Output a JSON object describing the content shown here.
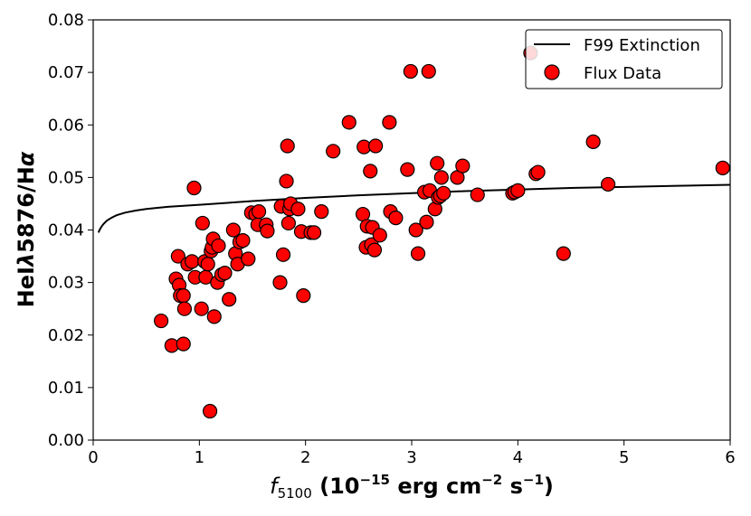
{
  "chart_data": {
    "type": "scatter",
    "title": "",
    "xlabel": {
      "prefix": "f",
      "subscript": "5100",
      "text1": " (10",
      "sup1": "−15",
      "text2": " erg cm",
      "sup2": "−2",
      "text3": " s",
      "sup3": "−1",
      "text4": ")"
    },
    "ylabel": {
      "a": "HeI",
      "lambda": "λ",
      "b": "5876/H",
      "alpha": "α"
    },
    "xlim": [
      0,
      6
    ],
    "ylim": [
      0,
      0.08
    ],
    "xticks": [
      0,
      1,
      2,
      3,
      4,
      5,
      6
    ],
    "xtick_labels": [
      "0",
      "1",
      "2",
      "3",
      "4",
      "5",
      "6"
    ],
    "yticks": [
      0.0,
      0.01,
      0.02,
      0.03,
      0.04,
      0.05,
      0.06,
      0.07,
      0.08
    ],
    "ytick_labels": [
      "0.00",
      "0.01",
      "0.02",
      "0.03",
      "0.04",
      "0.05",
      "0.06",
      "0.07",
      "0.08"
    ],
    "grid": false,
    "legend_position": "top-right",
    "legend": [
      {
        "label": "F99 Extinction",
        "marker": "line",
        "color": "#000000"
      },
      {
        "label": "Flux Data",
        "marker": "circle",
        "color": "#ff0000"
      }
    ],
    "series": [
      {
        "name": "F99 Extinction",
        "type": "line",
        "color": "#000000",
        "x": [
          0.05,
          0.06,
          0.08,
          0.1,
          0.13,
          0.17,
          0.22,
          0.3,
          0.4,
          0.5,
          0.7,
          1.0,
          1.5,
          2.0,
          2.5,
          3.0,
          3.5,
          4.0,
          4.5,
          5.0,
          5.5,
          6.0
        ],
        "y": [
          0.0395,
          0.04,
          0.0407,
          0.0412,
          0.0418,
          0.0423,
          0.0428,
          0.0433,
          0.0437,
          0.044,
          0.0444,
          0.0448,
          0.0455,
          0.0461,
          0.0466,
          0.047,
          0.0474,
          0.0477,
          0.048,
          0.0482,
          0.0484,
          0.0486
        ]
      },
      {
        "name": "Flux Data",
        "type": "scatter",
        "color": "#ff0000",
        "edgecolor": "#000000",
        "points": [
          [
            0.64,
            0.0227
          ],
          [
            0.74,
            0.018
          ],
          [
            0.78,
            0.0307
          ],
          [
            0.8,
            0.035
          ],
          [
            0.81,
            0.0295
          ],
          [
            0.82,
            0.0275
          ],
          [
            0.85,
            0.0275
          ],
          [
            0.85,
            0.0183
          ],
          [
            0.86,
            0.025
          ],
          [
            0.89,
            0.0335
          ],
          [
            0.93,
            0.034
          ],
          [
            0.95,
            0.048
          ],
          [
            0.96,
            0.031
          ],
          [
            1.02,
            0.025
          ],
          [
            1.03,
            0.0413
          ],
          [
            1.05,
            0.034
          ],
          [
            1.06,
            0.031
          ],
          [
            1.08,
            0.0335
          ],
          [
            1.1,
            0.0055
          ],
          [
            1.11,
            0.036
          ],
          [
            1.12,
            0.0367
          ],
          [
            1.13,
            0.0383
          ],
          [
            1.14,
            0.0235
          ],
          [
            1.17,
            0.03
          ],
          [
            1.18,
            0.037
          ],
          [
            1.21,
            0.0315
          ],
          [
            1.24,
            0.0318
          ],
          [
            1.28,
            0.0268
          ],
          [
            1.32,
            0.04
          ],
          [
            1.34,
            0.0355
          ],
          [
            1.36,
            0.0335
          ],
          [
            1.38,
            0.0377
          ],
          [
            1.41,
            0.038
          ],
          [
            1.46,
            0.0345
          ],
          [
            1.49,
            0.0433
          ],
          [
            1.53,
            0.043
          ],
          [
            1.55,
            0.041
          ],
          [
            1.56,
            0.0435
          ],
          [
            1.63,
            0.041
          ],
          [
            1.64,
            0.0398
          ],
          [
            1.76,
            0.03
          ],
          [
            1.77,
            0.0445
          ],
          [
            1.79,
            0.0353
          ],
          [
            1.82,
            0.0493
          ],
          [
            1.83,
            0.056
          ],
          [
            1.84,
            0.0413
          ],
          [
            1.85,
            0.044
          ],
          [
            1.86,
            0.045
          ],
          [
            1.93,
            0.044
          ],
          [
            1.96,
            0.0397
          ],
          [
            1.98,
            0.0275
          ],
          [
            2.05,
            0.0395
          ],
          [
            2.08,
            0.0395
          ],
          [
            2.15,
            0.0435
          ],
          [
            2.26,
            0.055
          ],
          [
            2.41,
            0.0605
          ],
          [
            2.54,
            0.043
          ],
          [
            2.55,
            0.0558
          ],
          [
            2.57,
            0.0367
          ],
          [
            2.58,
            0.0407
          ],
          [
            2.61,
            0.0512
          ],
          [
            2.62,
            0.0372
          ],
          [
            2.63,
            0.0405
          ],
          [
            2.65,
            0.0362
          ],
          [
            2.66,
            0.056
          ],
          [
            2.7,
            0.039
          ],
          [
            2.79,
            0.0605
          ],
          [
            2.8,
            0.0435
          ],
          [
            2.85,
            0.0423
          ],
          [
            2.96,
            0.0515
          ],
          [
            2.99,
            0.0702
          ],
          [
            3.04,
            0.04
          ],
          [
            3.06,
            0.0355
          ],
          [
            3.12,
            0.0472
          ],
          [
            3.14,
            0.0415
          ],
          [
            3.16,
            0.0702
          ],
          [
            3.17,
            0.0475
          ],
          [
            3.22,
            0.044
          ],
          [
            3.24,
            0.0527
          ],
          [
            3.25,
            0.0462
          ],
          [
            3.27,
            0.0465
          ],
          [
            3.28,
            0.05
          ],
          [
            3.3,
            0.047
          ],
          [
            3.43,
            0.05
          ],
          [
            3.48,
            0.0522
          ],
          [
            3.62,
            0.0467
          ],
          [
            3.95,
            0.047
          ],
          [
            3.97,
            0.0472
          ],
          [
            4.0,
            0.0475
          ],
          [
            4.12,
            0.0737
          ],
          [
            4.17,
            0.0507
          ],
          [
            4.19,
            0.051
          ],
          [
            4.43,
            0.0355
          ],
          [
            4.71,
            0.0568
          ],
          [
            4.85,
            0.0487
          ],
          [
            5.93,
            0.0518
          ]
        ]
      }
    ]
  }
}
